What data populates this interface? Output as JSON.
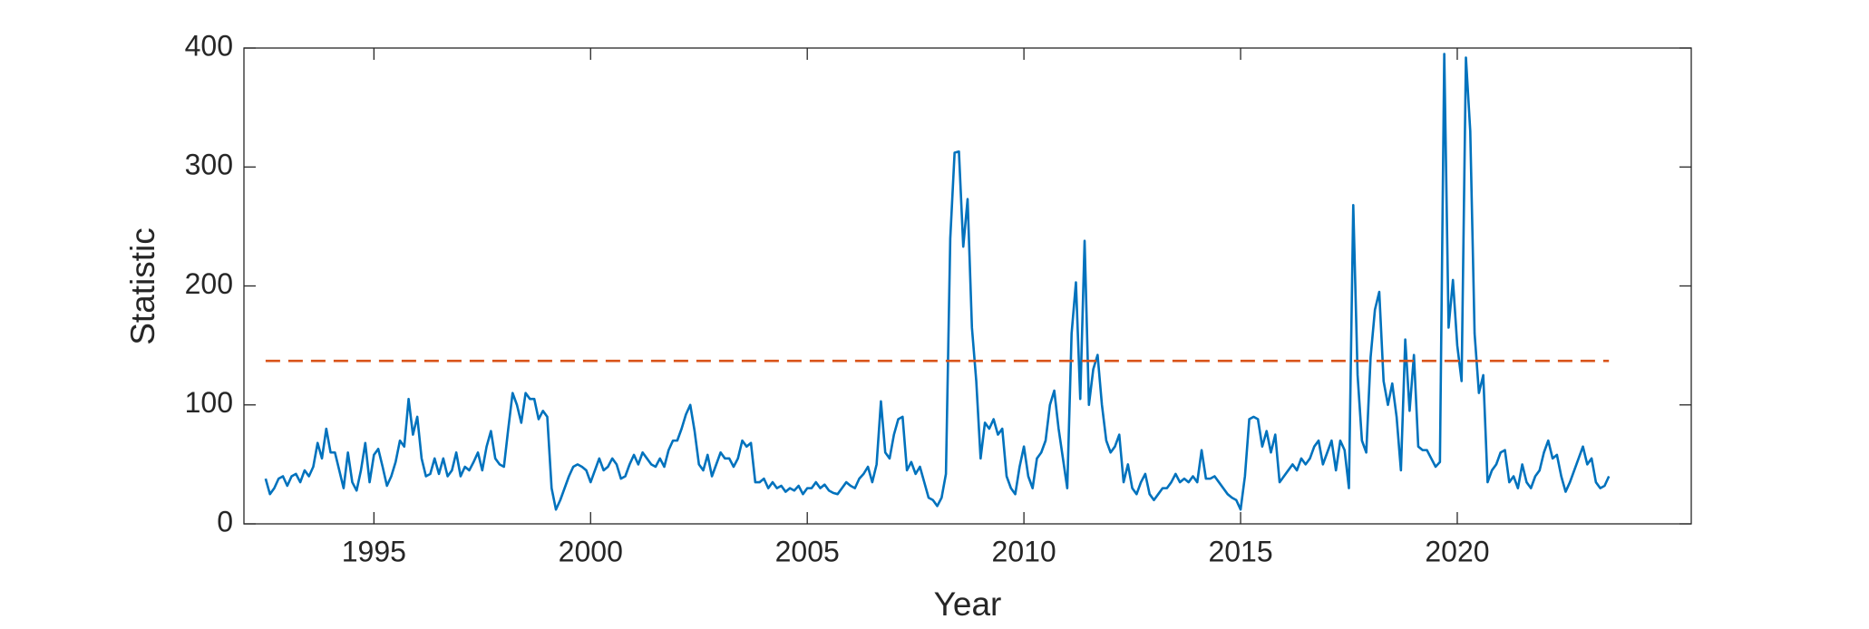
{
  "chart_data": {
    "type": "line",
    "xlabel": "Year",
    "ylabel": "Statistic",
    "xlim": [
      1992,
      2025.4
    ],
    "ylim": [
      0,
      400
    ],
    "xticks": [
      1995,
      2000,
      2005,
      2010,
      2015,
      2020
    ],
    "yticks": [
      0,
      100,
      200,
      300,
      400
    ],
    "box": true,
    "series": [
      {
        "color": "#0072bd",
        "x": [
          1992.5,
          1992.6,
          1992.7,
          1992.8,
          1992.9,
          1993,
          1993.1,
          1993.2,
          1993.3,
          1993.4,
          1993.5,
          1993.6,
          1993.7,
          1993.8,
          1993.9,
          1994,
          1994.1,
          1994.2,
          1994.3,
          1994.4,
          1994.5,
          1994.6,
          1994.7,
          1994.8,
          1994.9,
          1995,
          1995.1,
          1995.2,
          1995.3,
          1995.4,
          1995.5,
          1995.6,
          1995.7,
          1995.8,
          1995.9,
          1996,
          1996.1,
          1996.2,
          1996.3,
          1996.4,
          1996.5,
          1996.6,
          1996.7,
          1996.8,
          1996.9,
          1997,
          1997.1,
          1997.2,
          1997.3,
          1997.4,
          1997.5,
          1997.6,
          1997.7,
          1997.8,
          1997.9,
          1998,
          1998.1,
          1998.2,
          1998.3,
          1998.4,
          1998.5,
          1998.6,
          1998.7,
          1998.8,
          1998.9,
          1999,
          1999.1,
          1999.2,
          1999.3,
          1999.4,
          1999.5,
          1999.6,
          1999.7,
          1999.8,
          1999.9,
          2000,
          2000.1,
          2000.2,
          2000.3,
          2000.4,
          2000.5,
          2000.6,
          2000.7,
          2000.8,
          2000.9,
          2001,
          2001.1,
          2001.2,
          2001.3,
          2001.4,
          2001.5,
          2001.6,
          2001.7,
          2001.8,
          2001.9,
          2002,
          2002.1,
          2002.2,
          2002.3,
          2002.4,
          2002.5,
          2002.6,
          2002.7,
          2002.8,
          2002.9,
          2003,
          2003.1,
          2003.2,
          2003.3,
          2003.4,
          2003.5,
          2003.6,
          2003.7,
          2003.8,
          2003.9,
          2004,
          2004.1,
          2004.2,
          2004.3,
          2004.4,
          2004.5,
          2004.6,
          2004.7,
          2004.8,
          2004.9,
          2005,
          2005.1,
          2005.2,
          2005.3,
          2005.4,
          2005.5,
          2005.6,
          2005.7,
          2005.8,
          2005.9,
          2006,
          2006.1,
          2006.2,
          2006.3,
          2006.4,
          2006.5,
          2006.6,
          2006.7,
          2006.8,
          2006.9,
          2007,
          2007.1,
          2007.2,
          2007.3,
          2007.4,
          2007.5,
          2007.6,
          2007.7,
          2007.8,
          2007.9,
          2008,
          2008.1,
          2008.2,
          2008.3,
          2008.4,
          2008.5,
          2008.6,
          2008.7,
          2008.8,
          2008.9,
          2009,
          2009.1,
          2009.2,
          2009.3,
          2009.4,
          2009.5,
          2009.6,
          2009.7,
          2009.8,
          2009.9,
          2010,
          2010.1,
          2010.2,
          2010.3,
          2010.4,
          2010.5,
          2010.6,
          2010.7,
          2010.8,
          2010.9,
          2011,
          2011.1,
          2011.2,
          2011.3,
          2011.4,
          2011.5,
          2011.6,
          2011.7,
          2011.8,
          2011.9,
          2012,
          2012.1,
          2012.2,
          2012.3,
          2012.4,
          2012.5,
          2012.6,
          2012.7,
          2012.8,
          2012.9,
          2013,
          2013.1,
          2013.2,
          2013.3,
          2013.4,
          2013.5,
          2013.6,
          2013.7,
          2013.8,
          2013.9,
          2014,
          2014.1,
          2014.2,
          2014.3,
          2014.4,
          2014.5,
          2014.6,
          2014.7,
          2014.8,
          2014.9,
          2015,
          2015.1,
          2015.2,
          2015.3,
          2015.4,
          2015.5,
          2015.6,
          2015.7,
          2015.8,
          2015.9,
          2016,
          2016.1,
          2016.2,
          2016.3,
          2016.4,
          2016.5,
          2016.6,
          2016.7,
          2016.8,
          2016.9,
          2017,
          2017.1,
          2017.2,
          2017.3,
          2017.4,
          2017.5,
          2017.6,
          2017.7,
          2017.8,
          2017.9,
          2018,
          2018.1,
          2018.2,
          2018.3,
          2018.4,
          2018.5,
          2018.6,
          2018.7,
          2018.8,
          2018.9,
          2019,
          2019.1,
          2019.2,
          2019.3,
          2019.4,
          2019.5,
          2019.6,
          2019.7,
          2019.8,
          2019.9,
          2020,
          2020.1,
          2020.2,
          2020.3,
          2020.4,
          2020.5,
          2020.6,
          2020.7,
          2020.8,
          2020.9,
          2021,
          2021.1,
          2021.2,
          2021.3,
          2021.4,
          2021.5,
          2021.6,
          2021.7,
          2021.8,
          2021.9,
          2022,
          2022.1,
          2022.2,
          2022.3,
          2022.4,
          2022.5,
          2022.6,
          2022.7,
          2022.8,
          2022.9,
          2023,
          2023.1,
          2023.2,
          2023.3,
          2023.4,
          2023.5
        ],
        "values": [
          38,
          25,
          30,
          38,
          40,
          32,
          40,
          42,
          35,
          45,
          40,
          48,
          68,
          55,
          80,
          60,
          60,
          45,
          30,
          60,
          35,
          28,
          45,
          68,
          35,
          58,
          63,
          48,
          32,
          40,
          52,
          70,
          65,
          105,
          75,
          90,
          55,
          40,
          42,
          55,
          42,
          55,
          40,
          45,
          60,
          40,
          48,
          45,
          52,
          60,
          45,
          65,
          78,
          55,
          50,
          48,
          80,
          110,
          100,
          85,
          110,
          105,
          105,
          88,
          95,
          90,
          30,
          12,
          20,
          30,
          40,
          48,
          50,
          48,
          45,
          35,
          45,
          55,
          45,
          48,
          55,
          50,
          38,
          40,
          50,
          58,
          50,
          60,
          55,
          50,
          48,
          55,
          48,
          62,
          70,
          70,
          80,
          92,
          100,
          78,
          50,
          45,
          58,
          40,
          50,
          60,
          55,
          55,
          48,
          55,
          70,
          65,
          68,
          35,
          35,
          38,
          30,
          35,
          30,
          32,
          27,
          30,
          28,
          32,
          25,
          30,
          30,
          35,
          30,
          33,
          28,
          26,
          25,
          30,
          35,
          32,
          30,
          38,
          42,
          48,
          35,
          50,
          103,
          60,
          55,
          75,
          88,
          90,
          45,
          52,
          42,
          48,
          35,
          22,
          20,
          15,
          22,
          42,
          240,
          312,
          313,
          233,
          273,
          165,
          120,
          55,
          85,
          80,
          88,
          75,
          80,
          40,
          30,
          25,
          48,
          65,
          40,
          30,
          55,
          60,
          70,
          100,
          112,
          80,
          55,
          30,
          160,
          203,
          105,
          238,
          100,
          130,
          142,
          100,
          70,
          60,
          65,
          75,
          35,
          50,
          30,
          25,
          35,
          42,
          25,
          20,
          25,
          30,
          30,
          35,
          42,
          35,
          38,
          35,
          40,
          35,
          62,
          38,
          38,
          40,
          35,
          30,
          25,
          22,
          20,
          12,
          40,
          88,
          90,
          88,
          65,
          78,
          60,
          75,
          35,
          40,
          45,
          50,
          45,
          55,
          50,
          55,
          65,
          70,
          50,
          60,
          70,
          45,
          70,
          62,
          30,
          268,
          125,
          70,
          60,
          140,
          180,
          195,
          120,
          100,
          118,
          90,
          45,
          155,
          95,
          142,
          65,
          62,
          62,
          55,
          48,
          52,
          395,
          165,
          205,
          150,
          120,
          392,
          330,
          160,
          110,
          125,
          35,
          45,
          50,
          60,
          62,
          35,
          40,
          30,
          50,
          35,
          30,
          40,
          45,
          60,
          70,
          55,
          58,
          40,
          27,
          35,
          45,
          55,
          65,
          50,
          55,
          35,
          30,
          32,
          40
        ]
      },
      {
        "color": "#d95319",
        "dashed": true,
        "x": [
          1992.5,
          2023.5
        ],
        "values": [
          137,
          137
        ]
      }
    ]
  }
}
